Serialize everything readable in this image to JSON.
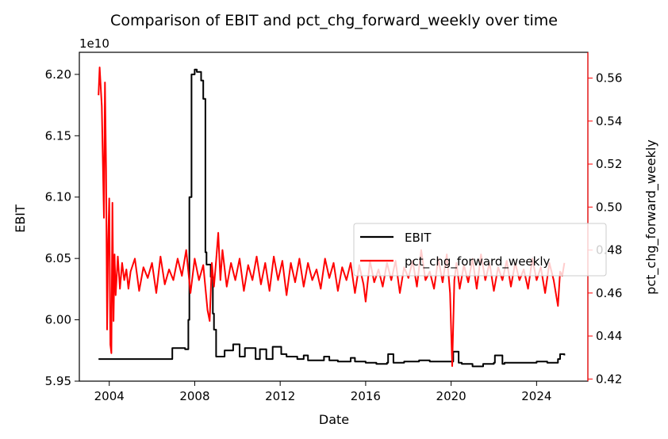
{
  "chart_data": {
    "type": "line",
    "title": "Comparison of EBIT and pct_chg_forward_weekly over time",
    "xlabel": "Date",
    "x_ticks": [
      "2004",
      "2008",
      "2012",
      "2016",
      "2020",
      "2024"
    ],
    "x_tick_years": [
      2004,
      2008,
      2012,
      2016,
      2020,
      2024
    ],
    "xlim_years": [
      2002.6,
      2026.4
    ],
    "left_axis": {
      "label": "EBIT",
      "offset_label": "1e10",
      "ticks": [
        "5.95",
        "6.00",
        "6.05",
        "6.10",
        "6.15",
        "6.20"
      ],
      "tick_values": [
        5.95,
        6.0,
        6.05,
        6.1,
        6.15,
        6.2
      ],
      "ylim": [
        5.95,
        6.218
      ],
      "color": "#000000"
    },
    "right_axis": {
      "label": "pct_chg_forward_weekly",
      "ticks": [
        "0.42",
        "0.44",
        "0.46",
        "0.48",
        "0.50",
        "0.52",
        "0.54",
        "0.56"
      ],
      "tick_values": [
        0.42,
        0.44,
        0.46,
        0.48,
        0.5,
        0.52,
        0.54,
        0.56
      ],
      "ylim": [
        0.419,
        0.572
      ],
      "color": "#ff0000"
    },
    "legend": {
      "placement": "center-right",
      "entries": [
        "EBIT",
        "pct_chg_forward_weekly"
      ]
    },
    "series": [
      {
        "name": "EBIT",
        "axis": "left",
        "color": "#000000",
        "x": [
          2003.5,
          2006.9,
          2006.95,
          2007.5,
          2007.55,
          2007.65,
          2007.7,
          2007.75,
          2007.85,
          2008.0,
          2008.1,
          2008.3,
          2008.4,
          2008.5,
          2008.55,
          2008.75,
          2008.85,
          2008.9,
          2009.0,
          2009.3,
          2009.4,
          2009.7,
          2009.8,
          2010.0,
          2010.1,
          2010.3,
          2010.35,
          2010.8,
          2010.85,
          2011.0,
          2011.05,
          2011.3,
          2011.35,
          2011.6,
          2011.65,
          2012.0,
          2012.05,
          2012.3,
          2012.8,
          2013.0,
          2013.1,
          2013.3,
          2013.7,
          2014.0,
          2014.05,
          2014.3,
          2014.7,
          2015.0,
          2015.3,
          2015.5,
          2016.0,
          2016.5,
          2017.0,
          2017.05,
          2017.3,
          2017.8,
          2018.0,
          2018.5,
          2019.0,
          2019.5,
          2020.0,
          2020.1,
          2020.35,
          2020.5,
          2021.0,
          2021.5,
          2022.0,
          2022.05,
          2022.4,
          2022.5,
          2023.0,
          2023.5,
          2024.0,
          2024.5,
          2025.0,
          2025.1,
          2025.3
        ],
        "values": [
          5.968,
          5.968,
          5.977,
          5.977,
          5.976,
          5.976,
          6.0,
          6.1,
          6.2,
          6.204,
          6.202,
          6.195,
          6.18,
          6.055,
          6.045,
          6.035,
          6.005,
          5.992,
          5.97,
          5.97,
          5.975,
          5.975,
          5.98,
          5.98,
          5.97,
          5.97,
          5.977,
          5.977,
          5.968,
          5.968,
          5.976,
          5.976,
          5.968,
          5.968,
          5.978,
          5.978,
          5.972,
          5.97,
          5.968,
          5.968,
          5.971,
          5.967,
          5.967,
          5.967,
          5.97,
          5.967,
          5.966,
          5.966,
          5.969,
          5.966,
          5.965,
          5.964,
          5.965,
          5.972,
          5.965,
          5.966,
          5.966,
          5.967,
          5.966,
          5.966,
          5.966,
          5.974,
          5.965,
          5.964,
          5.962,
          5.964,
          5.965,
          5.971,
          5.964,
          5.965,
          5.965,
          5.965,
          5.966,
          5.965,
          5.968,
          5.972,
          5.971
        ]
      },
      {
        "name": "pct_chg_forward_weekly",
        "axis": "right",
        "color": "#ff0000",
        "x": [
          2003.5,
          2003.55,
          2003.65,
          2003.75,
          2003.8,
          2003.85,
          2003.9,
          2003.95,
          2004.0,
          2004.05,
          2004.1,
          2004.15,
          2004.2,
          2004.25,
          2004.3,
          2004.4,
          2004.5,
          2004.6,
          2004.7,
          2004.8,
          2004.9,
          2005.0,
          2005.2,
          2005.4,
          2005.6,
          2005.8,
          2006.0,
          2006.2,
          2006.4,
          2006.6,
          2006.8,
          2007.0,
          2007.2,
          2007.4,
          2007.6,
          2007.8,
          2008.0,
          2008.2,
          2008.4,
          2008.6,
          2008.7,
          2008.8,
          2008.9,
          2009.0,
          2009.1,
          2009.2,
          2009.3,
          2009.5,
          2009.7,
          2009.9,
          2010.1,
          2010.3,
          2010.5,
          2010.7,
          2010.9,
          2011.1,
          2011.3,
          2011.5,
          2011.7,
          2011.9,
          2012.1,
          2012.3,
          2012.5,
          2012.7,
          2012.9,
          2013.1,
          2013.3,
          2013.5,
          2013.7,
          2013.9,
          2014.1,
          2014.3,
          2014.5,
          2014.7,
          2014.9,
          2015.1,
          2015.3,
          2015.5,
          2015.7,
          2015.9,
          2016.0,
          2016.2,
          2016.4,
          2016.6,
          2016.8,
          2017.0,
          2017.2,
          2017.4,
          2017.6,
          2017.8,
          2018.0,
          2018.2,
          2018.4,
          2018.6,
          2018.8,
          2019.0,
          2019.2,
          2019.4,
          2019.6,
          2019.8,
          2019.95,
          2020.05,
          2020.15,
          2020.25,
          2020.4,
          2020.6,
          2020.8,
          2021.0,
          2021.2,
          2021.4,
          2021.6,
          2021.8,
          2022.0,
          2022.2,
          2022.4,
          2022.6,
          2022.8,
          2023.0,
          2023.2,
          2023.4,
          2023.6,
          2023.8,
          2024.0,
          2024.2,
          2024.4,
          2024.6,
          2024.8,
          2025.0,
          2025.1,
          2025.2,
          2025.3
        ],
        "values": [
          0.552,
          0.565,
          0.547,
          0.495,
          0.558,
          0.518,
          0.443,
          0.485,
          0.504,
          0.436,
          0.432,
          0.502,
          0.447,
          0.478,
          0.459,
          0.477,
          0.462,
          0.474,
          0.466,
          0.471,
          0.462,
          0.47,
          0.476,
          0.461,
          0.472,
          0.467,
          0.474,
          0.46,
          0.477,
          0.464,
          0.471,
          0.466,
          0.476,
          0.468,
          0.48,
          0.46,
          0.476,
          0.466,
          0.473,
          0.452,
          0.447,
          0.474,
          0.463,
          0.475,
          0.488,
          0.466,
          0.48,
          0.463,
          0.474,
          0.466,
          0.476,
          0.461,
          0.473,
          0.466,
          0.477,
          0.464,
          0.474,
          0.461,
          0.477,
          0.466,
          0.475,
          0.459,
          0.474,
          0.465,
          0.476,
          0.463,
          0.474,
          0.466,
          0.471,
          0.462,
          0.476,
          0.467,
          0.474,
          0.461,
          0.472,
          0.466,
          0.474,
          0.46,
          0.473,
          0.464,
          0.456,
          0.475,
          0.465,
          0.471,
          0.463,
          0.474,
          0.466,
          0.475,
          0.46,
          0.472,
          0.467,
          0.475,
          0.463,
          0.48,
          0.466,
          0.47,
          0.462,
          0.476,
          0.465,
          0.478,
          0.46,
          0.426,
          0.466,
          0.474,
          0.462,
          0.473,
          0.465,
          0.476,
          0.462,
          0.478,
          0.466,
          0.474,
          0.461,
          0.472,
          0.466,
          0.475,
          0.463,
          0.474,
          0.466,
          0.471,
          0.462,
          0.476,
          0.466,
          0.472,
          0.46,
          0.474,
          0.466,
          0.454,
          0.47,
          0.468,
          0.474
        ]
      }
    ]
  }
}
